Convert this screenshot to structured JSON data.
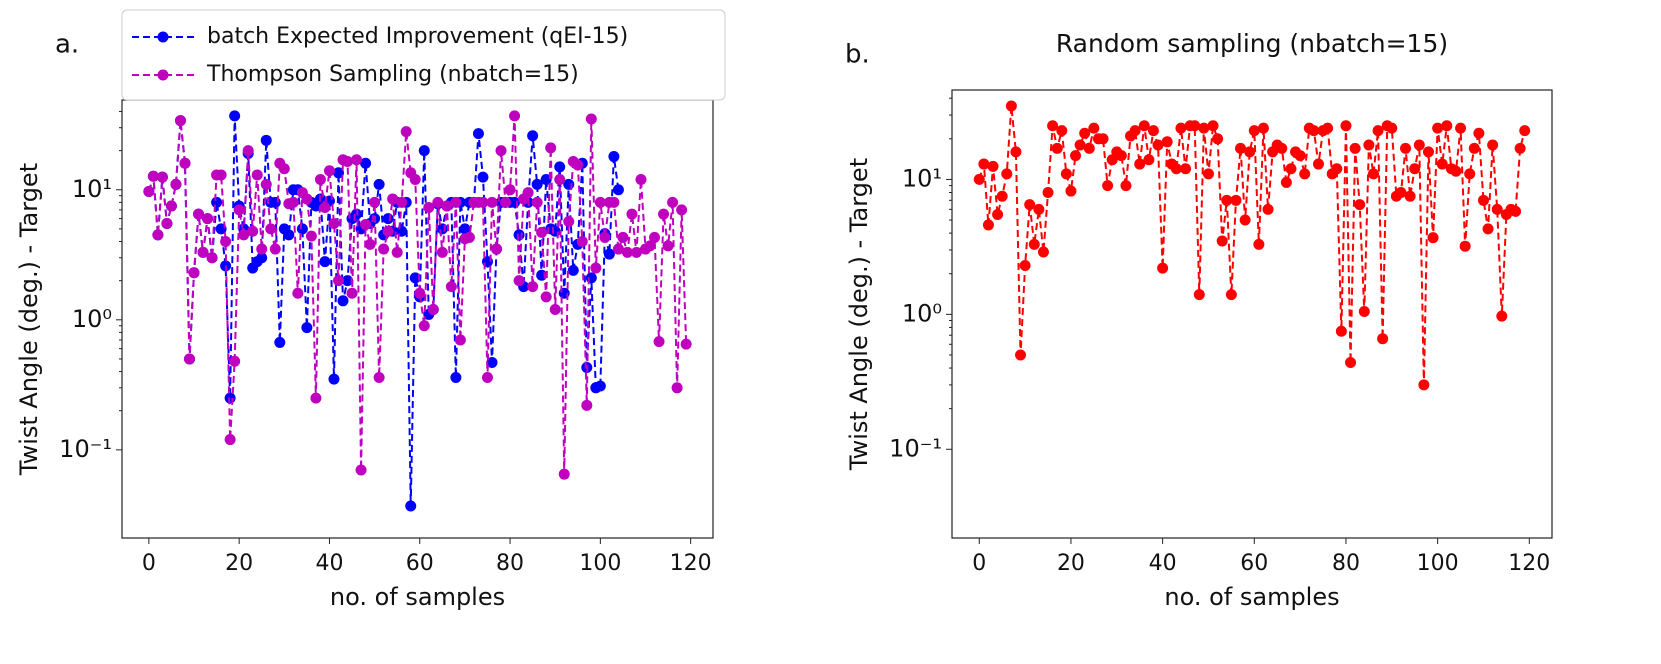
{
  "chart_data": [
    {
      "type": "line",
      "panel_label": "a.",
      "xlabel": "no. of samples",
      "ylabel": "Twist Angle (deg.) - Target",
      "yscale": "log",
      "legend": "upper left",
      "x": [
        0,
        1,
        2,
        3,
        4,
        5,
        6,
        7,
        8,
        9,
        10,
        11,
        12,
        13,
        14,
        15,
        16,
        17,
        18,
        19,
        20,
        21,
        22,
        23,
        24,
        25,
        26,
        27,
        28,
        29,
        30,
        31,
        32,
        33,
        34,
        35,
        36,
        37,
        38,
        39,
        40,
        41,
        42,
        43,
        44,
        45,
        46,
        47,
        48,
        49,
        50,
        51,
        52,
        53,
        54,
        55,
        56,
        57,
        58,
        59,
        60,
        61,
        62,
        63,
        64,
        65,
        66,
        67,
        68,
        69,
        70,
        71,
        72,
        73,
        74,
        75,
        76,
        77,
        78,
        79,
        80,
        81,
        82,
        83,
        84,
        85,
        86,
        87,
        88,
        89,
        90,
        91,
        92,
        93,
        94,
        95,
        96,
        97,
        98,
        99,
        100,
        101,
        102,
        103,
        104,
        105,
        106,
        107,
        108,
        109,
        110,
        111,
        112,
        113,
        114,
        115,
        116,
        117,
        118,
        119
      ],
      "xlim": [
        -5.95,
        124.95
      ],
      "xticks": [
        0,
        20,
        40,
        60,
        80,
        100,
        120
      ],
      "ylim": [
        0.021,
        49
      ],
      "yticks": [
        {
          "value": 0.1,
          "label": "10⁻¹"
        },
        {
          "value": 1,
          "label": "10⁰"
        },
        {
          "value": 10,
          "label": "10¹"
        }
      ],
      "series": [
        {
          "name": "batch Expected Improvement (qEI-15)",
          "color": "#0000ff",
          "values": [
            9.7,
            12.7,
            4.5,
            12.5,
            5.5,
            7.5,
            11,
            34,
            16,
            0.5,
            2.3,
            6.5,
            3.3,
            6,
            3,
            8,
            5,
            2.6,
            0.25,
            37,
            7.5,
            5,
            19,
            2.5,
            2.8,
            3,
            24,
            8,
            8,
            0.67,
            5,
            4.5,
            10,
            10,
            5,
            0.87,
            8,
            7.5,
            8.5,
            2.8,
            8.2,
            0.35,
            13.5,
            1.4,
            2,
            6,
            6.5,
            5,
            16,
            5.5,
            6,
            11,
            4.5,
            6,
            4.8,
            8,
            4.8,
            8,
            0.037,
            2.1,
            1.5,
            20,
            1.1,
            1.2,
            7.8,
            5,
            7.5,
            8,
            0.36,
            8,
            5,
            8,
            8,
            27,
            12.5,
            2.8,
            0.47,
            3.5,
            8,
            8,
            8,
            8,
            4.5,
            1.8,
            8,
            26,
            11,
            2.2,
            12,
            5,
            4.8,
            15,
            1.6,
            11,
            2.4,
            3.8,
            16,
            0.43,
            2.1,
            0.3,
            0.31,
            4.6,
            3.2,
            18,
            10,
            null,
            null,
            null,
            null,
            null,
            null,
            null,
            null,
            null,
            null,
            null,
            null,
            null,
            null,
            null
          ]
        },
        {
          "name": "Thompson Sampling (nbatch=15)",
          "color": "#bf00bf",
          "values": [
            9.7,
            12.7,
            4.5,
            12.5,
            5.5,
            7.5,
            11,
            34,
            16,
            0.5,
            2.3,
            6.5,
            3.3,
            6,
            3,
            13,
            13,
            4,
            0.12,
            0.48,
            7,
            4.5,
            20,
            4.8,
            13,
            3.5,
            11,
            5,
            3.5,
            16,
            14.5,
            7.8,
            8,
            1.6,
            9.5,
            8.5,
            4.4,
            0.25,
            12,
            7.3,
            14,
            5.5,
            2,
            17,
            16.5,
            1.6,
            17,
            0.07,
            5.4,
            3.8,
            8,
            0.36,
            3.5,
            4.8,
            8.5,
            3.3,
            8,
            28,
            13.5,
            12,
            1.6,
            0.9,
            7.3,
            1.2,
            8,
            3.3,
            7.5,
            1.8,
            8,
            0.7,
            4.2,
            4.3,
            8,
            8,
            8,
            0.36,
            8,
            3.5,
            20,
            8,
            10,
            37,
            2,
            8.5,
            9.5,
            1.8,
            8,
            4.7,
            1.5,
            21,
            1.2,
            12,
            0.065,
            5.7,
            16.5,
            15.5,
            4,
            0.22,
            35,
            2.5,
            8,
            4.3,
            8,
            8,
            3.5,
            4.3,
            3.3,
            6.5,
            3.3,
            12,
            3.5,
            3.7,
            4.3,
            0.68,
            6.5,
            3.7,
            8,
            0.3,
            7,
            0.65
          ]
        }
      ]
    },
    {
      "type": "line",
      "panel_label": "b.",
      "title": "Random sampling (nbatch=15)",
      "xlabel": "no. of samples",
      "ylabel": "Twist Angle (deg.) - Target",
      "yscale": "log",
      "x": [
        0,
        1,
        2,
        3,
        4,
        5,
        6,
        7,
        8,
        9,
        10,
        11,
        12,
        13,
        14,
        15,
        16,
        17,
        18,
        19,
        20,
        21,
        22,
        23,
        24,
        25,
        26,
        27,
        28,
        29,
        30,
        31,
        32,
        33,
        34,
        35,
        36,
        37,
        38,
        39,
        40,
        41,
        42,
        43,
        44,
        45,
        46,
        47,
        48,
        49,
        50,
        51,
        52,
        53,
        54,
        55,
        56,
        57,
        58,
        59,
        60,
        61,
        62,
        63,
        64,
        65,
        66,
        67,
        68,
        69,
        70,
        71,
        72,
        73,
        74,
        75,
        76,
        77,
        78,
        79,
        80,
        81,
        82,
        83,
        84,
        85,
        86,
        87,
        88,
        89,
        90,
        91,
        92,
        93,
        94,
        95,
        96,
        97,
        98,
        99,
        100,
        101,
        102,
        103,
        104,
        105,
        106,
        107,
        108,
        109,
        110,
        111,
        112,
        113,
        114,
        115,
        116,
        117,
        118,
        119
      ],
      "xlim": [
        -5.95,
        124.95
      ],
      "xticks": [
        0,
        20,
        40,
        60,
        80,
        100,
        120
      ],
      "ylim": [
        0.022,
        46
      ],
      "yticks": [
        {
          "value": 0.1,
          "label": "10⁻¹"
        },
        {
          "value": 1,
          "label": "10⁰"
        },
        {
          "value": 10,
          "label": "10¹"
        }
      ],
      "series": [
        {
          "color": "#ff0000",
          "values": [
            10,
            13,
            4.6,
            12.5,
            5.5,
            7.5,
            11,
            35,
            16,
            0.5,
            2.3,
            6.5,
            3.3,
            6,
            2.9,
            8,
            25,
            17,
            23,
            11,
            8.2,
            15,
            18,
            22,
            17,
            24,
            20,
            20,
            9,
            14,
            16,
            15,
            9,
            21,
            23,
            13,
            25,
            14,
            23,
            18,
            2.2,
            19,
            13,
            12,
            24,
            12,
            25,
            25,
            1.4,
            24,
            11,
            25,
            20,
            3.5,
            7,
            1.4,
            7,
            17,
            5,
            16,
            23,
            3.3,
            24,
            6,
            16,
            18,
            17,
            9.5,
            12,
            16,
            15,
            11,
            24,
            23,
            13,
            23,
            24,
            11,
            12,
            0.75,
            25,
            0.44,
            17,
            6.5,
            1.05,
            18,
            11,
            23,
            0.66,
            25,
            24,
            7.5,
            8,
            17,
            7.5,
            12,
            18,
            0.3,
            16,
            3.7,
            24,
            13,
            25,
            12,
            11.5,
            24,
            3.2,
            11,
            17,
            22,
            7,
            4.3,
            18,
            6,
            0.97,
            5.5,
            6,
            5.8,
            17,
            23
          ]
        }
      ]
    }
  ]
}
